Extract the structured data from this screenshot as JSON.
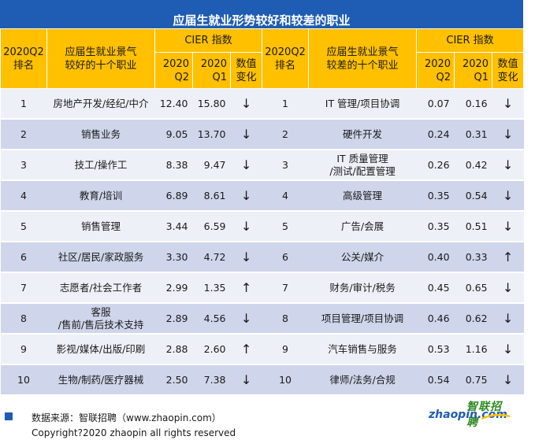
{
  "title": "应届生就业形势较好和较差的职业",
  "headers": {
    "rank": "2020Q2\n排名",
    "good_job": "应届生就业景气\n较好的十个职业",
    "bad_job": "应届生就业景气\n较差的十个职业",
    "cier": "CIER 指数",
    "q2": "2020\nQ2",
    "q1": "2020\nQ1",
    "change": "数值\n变化"
  },
  "good_rows": [
    {
      "rank": "1",
      "job": "房地产开发/经纪/中介",
      "q2": "12.40",
      "q1": "15.80",
      "change": "↓"
    },
    {
      "rank": "2",
      "job": "销售业务",
      "q2": "9.05",
      "q1": "13.70",
      "change": "↓"
    },
    {
      "rank": "3",
      "job": "技工/操作工",
      "q2": "8.38",
      "q1": "9.47",
      "change": "↓"
    },
    {
      "rank": "4",
      "job": "教育/培训",
      "q2": "6.89",
      "q1": "8.61",
      "change": "↓"
    },
    {
      "rank": "5",
      "job": "销售管理",
      "q2": "3.44",
      "q1": "6.59",
      "change": "↓"
    },
    {
      "rank": "6",
      "job": "社区/居民/家政服务",
      "q2": "3.30",
      "q1": "4.72",
      "change": "↓"
    },
    {
      "rank": "7",
      "job": "志愿者/社会工作者",
      "q2": "2.99",
      "q1": "1.35",
      "change": "↑"
    },
    {
      "rank": "8",
      "job": "客服\n/售前/售后技术支持",
      "q2": "2.89",
      "q1": "4.56",
      "change": "↓"
    },
    {
      "rank": "9",
      "job": "影视/媒体/出版/印刷",
      "q2": "2.88",
      "q1": "2.60",
      "change": "↑"
    },
    {
      "rank": "10",
      "job": "生物/制药/医疗器械",
      "q2": "2.50",
      "q1": "7.38",
      "change": "↓"
    }
  ],
  "bad_rows": [
    {
      "rank": "1",
      "job": "IT 管理/项目协调",
      "q2": "0.07",
      "q1": "0.16",
      "change": "↓"
    },
    {
      "rank": "2",
      "job": "硬件开发",
      "q2": "0.24",
      "q1": "0.31",
      "change": "↓"
    },
    {
      "rank": "3",
      "job": "IT 质量管理\n/测试/配置管理",
      "q2": "0.26",
      "q1": "0.42",
      "change": "↓"
    },
    {
      "rank": "4",
      "job": "高级管理",
      "q2": "0.35",
      "q1": "0.54",
      "change": "↓"
    },
    {
      "rank": "5",
      "job": "广告/会展",
      "q2": "0.35",
      "q1": "0.51",
      "change": "↓"
    },
    {
      "rank": "6",
      "job": "公关/媒介",
      "q2": "0.40",
      "q1": "0.33",
      "change": "↑"
    },
    {
      "rank": "7",
      "job": "财务/审计/税务",
      "q2": "0.45",
      "q1": "0.65",
      "change": "↓"
    },
    {
      "rank": "8",
      "job": "项目管理/项目协调",
      "q2": "0.46",
      "q1": "0.62",
      "change": "↓"
    },
    {
      "rank": "9",
      "job": "汽车销售与服务",
      "q2": "0.53",
      "q1": "1.16",
      "change": "↓"
    },
    {
      "rank": "10",
      "job": "律师/法务/合规",
      "q2": "0.54",
      "q1": "0.75",
      "change": "↓"
    }
  ],
  "footer": {
    "source": "数据来源：智联招聘（www.zhaopin.com）",
    "copyright": "Copyright?2020 zhaopin all rights reserved"
  },
  "logo": {
    "cn": "智联招聘",
    "en": "zhaopin.com"
  },
  "colors": {
    "title_bg": "#1f5cb3",
    "header_bg": "#ffc000",
    "row_light": "#eef0f8",
    "row_dark": "#cfd5ea"
  }
}
